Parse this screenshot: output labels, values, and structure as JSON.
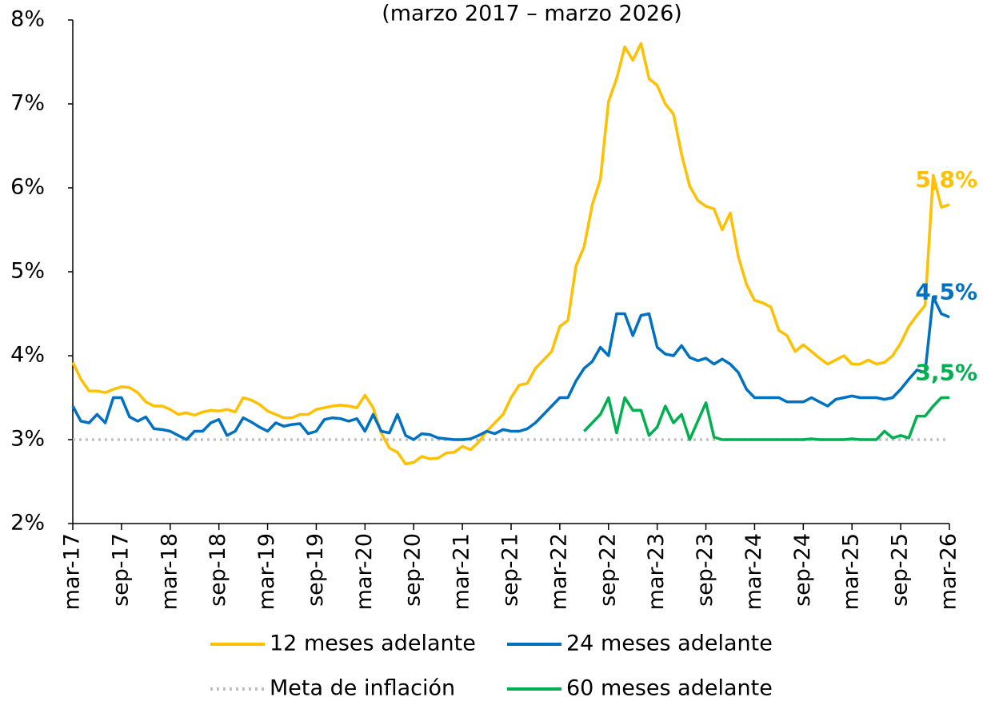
{
  "chart_data": {
    "type": "line",
    "subtitle": "(marzo 2017 – marzo 2026)",
    "categories": [
      "mar-17",
      null,
      null,
      null,
      null,
      null,
      "sep-17",
      null,
      null,
      null,
      null,
      null,
      "mar-18",
      null,
      null,
      null,
      null,
      null,
      "sep-18",
      null,
      null,
      null,
      null,
      null,
      "mar-19",
      null,
      null,
      null,
      null,
      null,
      "sep-19",
      null,
      null,
      null,
      null,
      null,
      "mar-20",
      null,
      null,
      null,
      null,
      null,
      "sep-20",
      null,
      null,
      null,
      null,
      null,
      "mar-21",
      null,
      null,
      null,
      null,
      null,
      "sep-21",
      null,
      null,
      null,
      null,
      null,
      "mar-22",
      null,
      null,
      null,
      null,
      null,
      "sep-22",
      null,
      null,
      null,
      null,
      null,
      "mar-23",
      null,
      null,
      null,
      null,
      null,
      "sep-23",
      null,
      null,
      null,
      null,
      null,
      "mar-24",
      null,
      null,
      null,
      null,
      null,
      "sep-24",
      null,
      null,
      null,
      null,
      null,
      "mar-25",
      null,
      null,
      null,
      null,
      null,
      "sep-25",
      null,
      null,
      null,
      null,
      null,
      "mar-26"
    ],
    "ylim": [
      2,
      8
    ],
    "yticks": [
      {
        "value": 2,
        "label": "2%"
      },
      {
        "value": 3,
        "label": "3%"
      },
      {
        "value": 4,
        "label": "4%"
      },
      {
        "value": 5,
        "label": "5%"
      },
      {
        "value": 6,
        "label": "6%"
      },
      {
        "value": 7,
        "label": "7%"
      },
      {
        "value": 8,
        "label": "8%"
      }
    ],
    "series": [
      {
        "name": "12 meses adelante",
        "color": "#FFC000",
        "values": [
          3.92,
          3.72,
          3.58,
          3.58,
          3.56,
          3.6,
          3.63,
          3.62,
          3.56,
          3.45,
          3.4,
          3.4,
          3.36,
          3.3,
          3.32,
          3.29,
          3.33,
          3.35,
          3.34,
          3.36,
          3.33,
          3.5,
          3.47,
          3.42,
          3.34,
          3.3,
          3.26,
          3.26,
          3.3,
          3.3,
          3.36,
          3.38,
          3.4,
          3.41,
          3.4,
          3.38,
          3.53,
          3.38,
          3.08,
          2.9,
          2.85,
          2.71,
          2.73,
          2.8,
          2.77,
          2.78,
          2.84,
          2.85,
          2.92,
          2.88,
          2.97,
          3.1,
          3.2,
          3.3,
          3.5,
          3.65,
          3.67,
          3.85,
          3.95,
          4.05,
          4.35,
          4.42,
          5.07,
          5.3,
          5.8,
          6.1,
          7.03,
          7.3,
          7.68,
          7.52,
          7.72,
          7.3,
          7.22,
          7.0,
          6.88,
          6.4,
          6.02,
          5.85,
          5.78,
          5.75,
          5.5,
          5.7,
          5.18,
          4.85,
          4.66,
          4.63,
          4.58,
          4.3,
          4.24,
          4.05,
          4.13,
          4.05,
          3.97,
          3.9,
          3.95,
          4.0,
          3.9,
          3.9,
          3.95,
          3.9,
          3.92,
          4.0,
          4.15,
          4.35,
          4.48,
          4.6,
          6.15,
          5.77,
          5.8
        ],
        "value_labels": [
          null,
          null,
          null,
          null,
          null,
          null,
          null,
          null,
          null,
          null,
          null,
          null,
          null,
          null,
          null,
          null,
          null,
          null,
          null,
          null,
          null,
          null,
          null,
          null,
          null,
          null,
          null,
          null,
          null,
          null,
          null,
          null,
          null,
          null,
          null,
          null,
          null,
          null,
          null,
          null,
          null,
          null,
          null,
          null,
          null,
          null,
          null,
          null,
          null,
          null,
          null,
          null,
          null,
          null,
          null,
          null,
          null,
          null,
          null,
          null,
          null,
          null,
          null,
          null,
          null,
          null,
          null,
          null,
          null,
          null,
          null,
          null,
          null,
          null,
          null,
          null,
          null,
          null,
          null,
          null,
          null,
          null,
          null,
          null,
          null,
          null,
          null,
          null,
          null,
          null,
          null,
          null,
          null,
          null,
          null,
          null,
          null,
          null,
          null,
          null,
          null,
          null,
          null,
          null,
          null,
          null,
          null,
          null,
          "5,8%"
        ]
      },
      {
        "name": "24 meses adelante",
        "color": "#0070C0",
        "values": [
          3.4,
          3.22,
          3.2,
          3.3,
          3.2,
          3.5,
          3.5,
          3.27,
          3.22,
          3.27,
          3.13,
          3.12,
          3.1,
          3.05,
          3.0,
          3.1,
          3.1,
          3.2,
          3.24,
          3.05,
          3.1,
          3.26,
          3.21,
          3.15,
          3.1,
          3.2,
          3.16,
          3.18,
          3.19,
          3.07,
          3.1,
          3.24,
          3.26,
          3.25,
          3.22,
          3.25,
          3.1,
          3.3,
          3.1,
          3.08,
          3.3,
          3.05,
          3.0,
          3.07,
          3.06,
          3.02,
          3.01,
          3.0,
          3.0,
          3.01,
          3.05,
          3.1,
          3.07,
          3.12,
          3.1,
          3.1,
          3.13,
          3.2,
          3.3,
          3.4,
          3.5,
          3.5,
          3.7,
          3.85,
          3.93,
          4.1,
          4.0,
          4.5,
          4.5,
          4.24,
          4.48,
          4.5,
          4.1,
          4.02,
          4.0,
          4.12,
          3.98,
          3.94,
          3.97,
          3.9,
          3.96,
          3.9,
          3.8,
          3.6,
          3.5,
          3.5,
          3.5,
          3.5,
          3.45,
          3.45,
          3.45,
          3.5,
          3.45,
          3.4,
          3.48,
          3.5,
          3.52,
          3.5,
          3.5,
          3.5,
          3.48,
          3.5,
          3.6,
          3.72,
          3.83,
          3.8,
          4.7,
          4.5,
          4.46
        ],
        "value_labels": [
          null,
          null,
          null,
          null,
          null,
          null,
          null,
          null,
          null,
          null,
          null,
          null,
          null,
          null,
          null,
          null,
          null,
          null,
          null,
          null,
          null,
          null,
          null,
          null,
          null,
          null,
          null,
          null,
          null,
          null,
          null,
          null,
          null,
          null,
          null,
          null,
          null,
          null,
          null,
          null,
          null,
          null,
          null,
          null,
          null,
          null,
          null,
          null,
          null,
          null,
          null,
          null,
          null,
          null,
          null,
          null,
          null,
          null,
          null,
          null,
          null,
          null,
          null,
          null,
          null,
          null,
          null,
          null,
          null,
          null,
          null,
          null,
          null,
          null,
          null,
          null,
          null,
          null,
          null,
          null,
          null,
          null,
          null,
          null,
          null,
          null,
          null,
          null,
          null,
          null,
          null,
          null,
          null,
          null,
          null,
          null,
          null,
          null,
          null,
          null,
          null,
          null,
          null,
          null,
          null,
          null,
          null,
          null,
          "4,5%"
        ]
      },
      {
        "name": "Meta de inflación",
        "color": "#BFBFBF",
        "style": "dotted",
        "values": [
          3,
          3,
          3,
          3,
          3,
          3,
          3,
          3,
          3,
          3,
          3,
          3,
          3,
          3,
          3,
          3,
          3,
          3,
          3,
          3,
          3,
          3,
          3,
          3,
          3,
          3,
          3,
          3,
          3,
          3,
          3,
          3,
          3,
          3,
          3,
          3,
          3,
          3,
          3,
          3,
          3,
          3,
          3,
          3,
          3,
          3,
          3,
          3,
          3,
          3,
          3,
          3,
          3,
          3,
          3,
          3,
          3,
          3,
          3,
          3,
          3,
          3,
          3,
          3,
          3,
          3,
          3,
          3,
          3,
          3,
          3,
          3,
          3,
          3,
          3,
          3,
          3,
          3,
          3,
          3,
          3,
          3,
          3,
          3,
          3,
          3,
          3,
          3,
          3,
          3,
          3,
          3,
          3,
          3,
          3,
          3,
          3,
          3,
          3,
          3,
          3,
          3,
          3,
          3,
          3,
          3,
          3,
          3,
          3
        ]
      },
      {
        "name": "60 meses adelante",
        "color": "#00B050",
        "values": [
          null,
          null,
          null,
          null,
          null,
          null,
          null,
          null,
          null,
          null,
          null,
          null,
          null,
          null,
          null,
          null,
          null,
          null,
          null,
          null,
          null,
          null,
          null,
          null,
          null,
          null,
          null,
          null,
          null,
          null,
          null,
          null,
          null,
          null,
          null,
          null,
          null,
          null,
          null,
          null,
          null,
          null,
          null,
          null,
          null,
          null,
          null,
          null,
          null,
          null,
          null,
          null,
          null,
          null,
          null,
          null,
          null,
          null,
          null,
          null,
          null,
          null,
          null,
          3.1,
          3.2,
          3.3,
          3.5,
          3.08,
          3.5,
          3.35,
          3.35,
          3.05,
          3.15,
          3.4,
          3.2,
          3.3,
          3.0,
          3.22,
          3.44,
          3.03,
          3.0,
          3.0,
          3.0,
          3.0,
          3.0,
          3.0,
          3.0,
          3.0,
          3.0,
          3.0,
          3.0,
          3.01,
          3.0,
          3.0,
          3.0,
          3.0,
          3.01,
          3.0,
          3.0,
          3.0,
          3.1,
          3.02,
          3.05,
          3.02,
          3.28,
          3.28,
          3.4,
          3.5,
          3.5
        ],
        "value_labels": [
          null,
          null,
          null,
          null,
          null,
          null,
          null,
          null,
          null,
          null,
          null,
          null,
          null,
          null,
          null,
          null,
          null,
          null,
          null,
          null,
          null,
          null,
          null,
          null,
          null,
          null,
          null,
          null,
          null,
          null,
          null,
          null,
          null,
          null,
          null,
          null,
          null,
          null,
          null,
          null,
          null,
          null,
          null,
          null,
          null,
          null,
          null,
          null,
          null,
          null,
          null,
          null,
          null,
          null,
          null,
          null,
          null,
          null,
          null,
          null,
          null,
          null,
          null,
          null,
          null,
          null,
          null,
          null,
          null,
          null,
          null,
          null,
          null,
          null,
          null,
          null,
          null,
          null,
          null,
          null,
          null,
          null,
          null,
          null,
          null,
          null,
          null,
          null,
          null,
          null,
          null,
          null,
          null,
          null,
          null,
          null,
          null,
          null,
          null,
          null,
          null,
          null,
          null,
          null,
          null,
          null,
          null,
          null,
          "3,5%"
        ]
      }
    ]
  }
}
